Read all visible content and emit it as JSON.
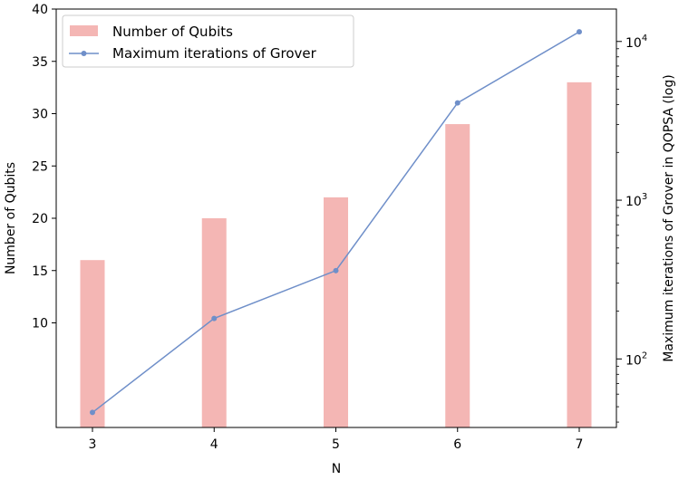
{
  "chart_data": {
    "type": "bar+line",
    "categories": [
      "3",
      "4",
      "5",
      "6",
      "7"
    ],
    "xlabel": "N",
    "series": [
      {
        "name": "Number of Qubits",
        "kind": "bar",
        "axis": "left",
        "color": "#f4b6b4",
        "values": [
          16,
          20,
          22,
          29,
          33
        ]
      },
      {
        "name": "Maximum iterations of Grover",
        "kind": "line",
        "axis": "right",
        "color": "#6f8fc9",
        "values": [
          46,
          180,
          360,
          4100,
          11500
        ]
      }
    ],
    "left_axis": {
      "label": "Number of Qubits",
      "ylim": [
        0,
        40
      ],
      "ticks": [
        "10",
        "15",
        "20",
        "25",
        "30",
        "35",
        "40"
      ]
    },
    "right_axis": {
      "label": "Maximum iterations of Grover in QOPSA (log)",
      "scale": "log",
      "ylim": [
        37,
        16000
      ],
      "ticks": [
        {
          "base": "10",
          "exp": "2"
        },
        {
          "base": "10",
          "exp": "3"
        },
        {
          "base": "10",
          "exp": "4"
        }
      ]
    },
    "legend": "top-left",
    "grid": false
  }
}
